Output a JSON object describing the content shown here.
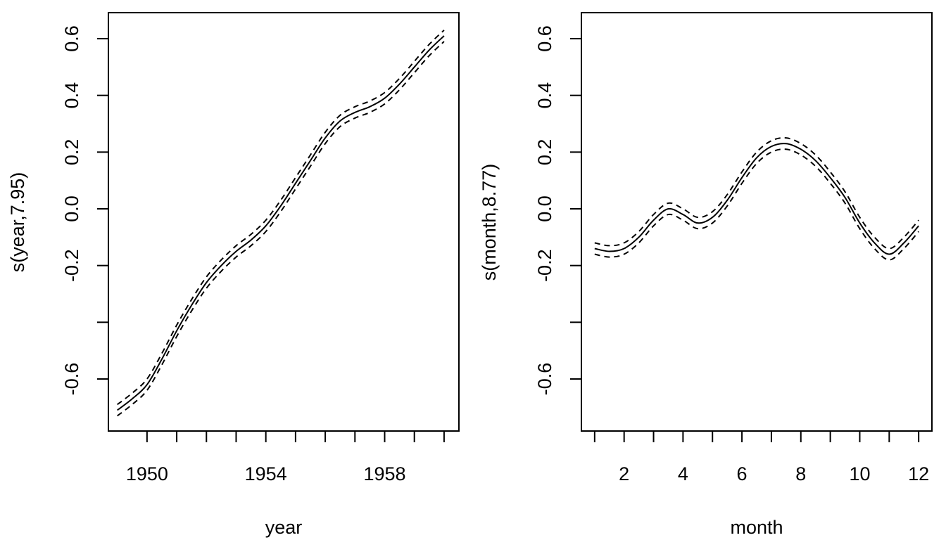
{
  "chart_data": [
    {
      "type": "line",
      "title": "",
      "xlabel": "year",
      "ylabel": "s(year,7.95)",
      "xlim": [
        1948.7,
        1960.5
      ],
      "ylim": [
        -0.78,
        0.7
      ],
      "x_ticks": [
        1950,
        1951,
        1952,
        1953,
        1954,
        1955,
        1956,
        1957,
        1958,
        1959,
        1960
      ],
      "x_tick_labels": [
        "1950",
        "1954",
        "1958"
      ],
      "x_tick_labels_at": [
        1950,
        1954,
        1958
      ],
      "y_ticks": [
        -0.6,
        -0.4,
        -0.2,
        0.0,
        0.2,
        0.4,
        0.6
      ],
      "y_tick_labels": [
        "-0.6",
        "",
        "-0.2",
        "0.0",
        "0.2",
        "0.4",
        "0.6"
      ],
      "grid": false,
      "series": [
        {
          "style": "solid",
          "x": [
            1949.0,
            1949.5,
            1950.0,
            1950.5,
            1951.0,
            1951.5,
            1952.0,
            1952.5,
            1953.0,
            1953.5,
            1954.0,
            1954.5,
            1955.0,
            1955.5,
            1956.0,
            1956.5,
            1957.0,
            1957.5,
            1958.0,
            1958.5,
            1959.0,
            1959.5,
            1960.0
          ],
          "y": [
            -0.71,
            -0.67,
            -0.62,
            -0.53,
            -0.43,
            -0.34,
            -0.26,
            -0.2,
            -0.15,
            -0.11,
            -0.06,
            0.01,
            0.09,
            0.17,
            0.25,
            0.31,
            0.34,
            0.36,
            0.39,
            0.44,
            0.5,
            0.56,
            0.61
          ]
        },
        {
          "style": "dashed",
          "x": [
            1949.0,
            1949.5,
            1950.0,
            1950.5,
            1951.0,
            1951.5,
            1952.0,
            1952.5,
            1953.0,
            1953.5,
            1954.0,
            1954.5,
            1955.0,
            1955.5,
            1956.0,
            1956.5,
            1957.0,
            1957.5,
            1958.0,
            1958.5,
            1959.0,
            1959.5,
            1960.0
          ],
          "y": [
            -0.69,
            -0.65,
            -0.6,
            -0.51,
            -0.41,
            -0.32,
            -0.24,
            -0.18,
            -0.13,
            -0.09,
            -0.04,
            0.03,
            0.11,
            0.19,
            0.27,
            0.33,
            0.36,
            0.38,
            0.41,
            0.46,
            0.52,
            0.58,
            0.63
          ]
        },
        {
          "style": "dashed",
          "x": [
            1949.0,
            1949.5,
            1950.0,
            1950.5,
            1951.0,
            1951.5,
            1952.0,
            1952.5,
            1953.0,
            1953.5,
            1954.0,
            1954.5,
            1955.0,
            1955.5,
            1956.0,
            1956.5,
            1957.0,
            1957.5,
            1958.0,
            1958.5,
            1959.0,
            1959.5,
            1960.0
          ],
          "y": [
            -0.73,
            -0.69,
            -0.64,
            -0.55,
            -0.45,
            -0.36,
            -0.28,
            -0.22,
            -0.17,
            -0.13,
            -0.08,
            -0.01,
            0.07,
            0.15,
            0.23,
            0.29,
            0.32,
            0.34,
            0.37,
            0.42,
            0.48,
            0.54,
            0.59
          ]
        }
      ]
    },
    {
      "type": "line",
      "title": "",
      "xlabel": "month",
      "ylabel": "s(month,8.77)",
      "xlim": [
        0.55,
        12.45
      ],
      "ylim": [
        -0.78,
        0.7
      ],
      "x_ticks": [
        1,
        2,
        3,
        4,
        5,
        6,
        7,
        8,
        9,
        10,
        11,
        12
      ],
      "x_tick_labels": [
        "2",
        "4",
        "6",
        "8",
        "10",
        "12"
      ],
      "x_tick_labels_at": [
        2,
        4,
        6,
        8,
        10,
        12
      ],
      "y_ticks": [
        -0.6,
        -0.4,
        -0.2,
        0.0,
        0.2,
        0.4,
        0.6
      ],
      "y_tick_labels": [
        "-0.6",
        "",
        "-0.2",
        "0.0",
        "0.2",
        "0.4",
        "0.6"
      ],
      "grid": false,
      "series": [
        {
          "style": "solid",
          "x": [
            1.0,
            1.5,
            2.0,
            2.5,
            3.0,
            3.5,
            4.0,
            4.5,
            5.0,
            5.5,
            6.0,
            6.5,
            7.0,
            7.5,
            8.0,
            8.5,
            9.0,
            9.5,
            10.0,
            10.5,
            11.0,
            11.5,
            12.0
          ],
          "y": [
            -0.14,
            -0.15,
            -0.14,
            -0.1,
            -0.04,
            0.0,
            -0.02,
            -0.05,
            -0.03,
            0.03,
            0.11,
            0.18,
            0.22,
            0.23,
            0.21,
            0.17,
            0.11,
            0.04,
            -0.05,
            -0.12,
            -0.16,
            -0.12,
            -0.06
          ]
        },
        {
          "style": "dashed",
          "x": [
            1.0,
            1.5,
            2.0,
            2.5,
            3.0,
            3.5,
            4.0,
            4.5,
            5.0,
            5.5,
            6.0,
            6.5,
            7.0,
            7.5,
            8.0,
            8.5,
            9.0,
            9.5,
            10.0,
            10.5,
            11.0,
            11.5,
            12.0
          ],
          "y": [
            -0.12,
            -0.13,
            -0.12,
            -0.08,
            -0.02,
            0.02,
            0.0,
            -0.03,
            -0.01,
            0.05,
            0.13,
            0.2,
            0.24,
            0.25,
            0.23,
            0.19,
            0.13,
            0.06,
            -0.03,
            -0.1,
            -0.14,
            -0.1,
            -0.04
          ]
        },
        {
          "style": "dashed",
          "x": [
            1.0,
            1.5,
            2.0,
            2.5,
            3.0,
            3.5,
            4.0,
            4.5,
            5.0,
            5.5,
            6.0,
            6.5,
            7.0,
            7.5,
            8.0,
            8.5,
            9.0,
            9.5,
            10.0,
            10.5,
            11.0,
            11.5,
            12.0
          ],
          "y": [
            -0.16,
            -0.17,
            -0.16,
            -0.12,
            -0.06,
            -0.02,
            -0.04,
            -0.07,
            -0.05,
            0.01,
            0.09,
            0.16,
            0.2,
            0.21,
            0.19,
            0.15,
            0.09,
            0.02,
            -0.07,
            -0.14,
            -0.18,
            -0.14,
            -0.08
          ]
        }
      ]
    }
  ]
}
